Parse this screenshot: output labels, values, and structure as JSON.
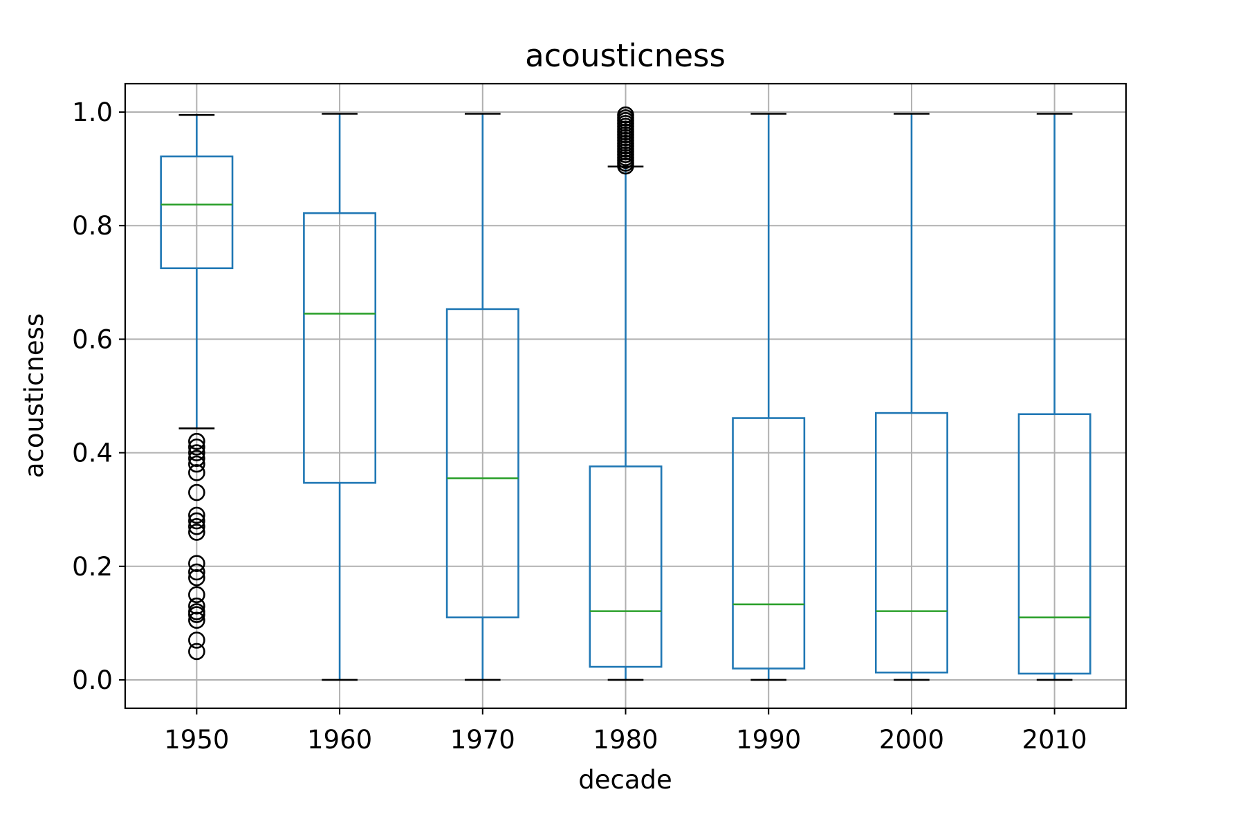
{
  "chart_data": {
    "type": "box",
    "title": "acousticness",
    "xlabel": "decade",
    "ylabel": "acousticness",
    "ylim": [
      -0.05,
      1.05
    ],
    "yticks": [
      0.0,
      0.2,
      0.4,
      0.6,
      0.8,
      1.0
    ],
    "ytick_labels": [
      "0.0",
      "0.2",
      "0.4",
      "0.6",
      "0.8",
      "1.0"
    ],
    "grid": true,
    "colors": {
      "box": "#1f77b4",
      "median": "#2ca02c",
      "whisker_cap": "#000000",
      "flier": "#000000",
      "grid": "#b0b0b0"
    },
    "categories": [
      "1950",
      "1960",
      "1970",
      "1980",
      "1990",
      "2000",
      "2010"
    ],
    "boxes": [
      {
        "category": "1950",
        "whisker_low": 0.443,
        "q1": 0.725,
        "median": 0.837,
        "q3": 0.922,
        "whisker_high": 0.995,
        "fliers": [
          0.05,
          0.07,
          0.105,
          0.115,
          0.12,
          0.13,
          0.15,
          0.18,
          0.19,
          0.205,
          0.26,
          0.27,
          0.28,
          0.29,
          0.33,
          0.365,
          0.38,
          0.39,
          0.4,
          0.41,
          0.42
        ]
      },
      {
        "category": "1960",
        "whisker_low": 0.0,
        "q1": 0.347,
        "median": 0.645,
        "q3": 0.822,
        "whisker_high": 0.997,
        "fliers": []
      },
      {
        "category": "1970",
        "whisker_low": 0.0,
        "q1": 0.11,
        "median": 0.355,
        "q3": 0.653,
        "whisker_high": 0.997,
        "fliers": []
      },
      {
        "category": "1980",
        "whisker_low": 0.0,
        "q1": 0.023,
        "median": 0.121,
        "q3": 0.376,
        "whisker_high": 0.904,
        "fliers": [
          0.905,
          0.91,
          0.915,
          0.92,
          0.925,
          0.93,
          0.935,
          0.94,
          0.945,
          0.95,
          0.955,
          0.96,
          0.965,
          0.97,
          0.975,
          0.98,
          0.985,
          0.99,
          0.995
        ]
      },
      {
        "category": "1990",
        "whisker_low": 0.0,
        "q1": 0.02,
        "median": 0.133,
        "q3": 0.461,
        "whisker_high": 0.997,
        "fliers": []
      },
      {
        "category": "2000",
        "whisker_low": 0.0,
        "q1": 0.013,
        "median": 0.121,
        "q3": 0.47,
        "whisker_high": 0.997,
        "fliers": []
      },
      {
        "category": "2010",
        "whisker_low": 0.0,
        "q1": 0.011,
        "median": 0.11,
        "q3": 0.468,
        "whisker_high": 0.997,
        "fliers": []
      }
    ]
  }
}
